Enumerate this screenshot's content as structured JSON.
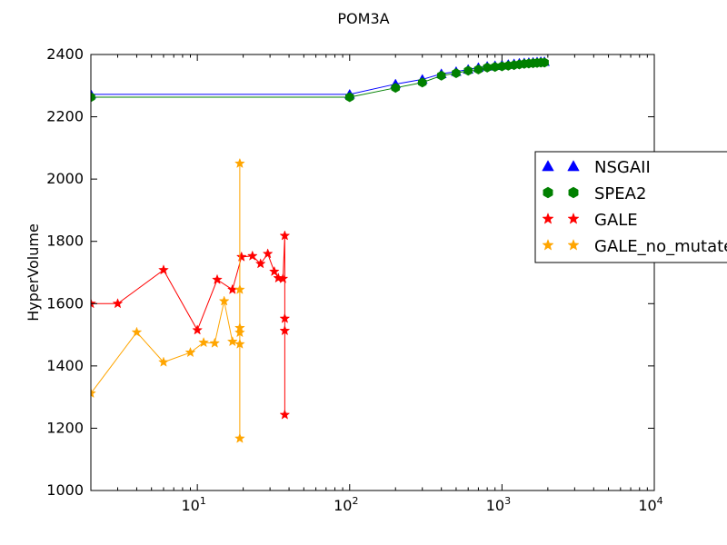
{
  "chart_data": {
    "type": "line",
    "title": "POM3A",
    "xlabel": "",
    "ylabel": "HyperVolume",
    "xscale": "log",
    "xlim": [
      2,
      10000
    ],
    "ylim": [
      1000,
      2400
    ],
    "yticks": [
      1000,
      1200,
      1400,
      1600,
      1800,
      2000,
      2200,
      2400
    ],
    "xticks": [
      {
        "value": 10,
        "base": "10",
        "exp": "1"
      },
      {
        "value": 100,
        "base": "10",
        "exp": "2"
      },
      {
        "value": 1000,
        "base": "10",
        "exp": "3"
      },
      {
        "value": 10000,
        "base": "10",
        "exp": "4"
      }
    ],
    "legend_position": "right",
    "series": [
      {
        "name": "NSGAII",
        "color": "#0000ff",
        "marker": "triangle",
        "x": [
          2,
          100,
          200,
          300,
          400,
          500,
          600,
          700,
          800,
          900,
          1000,
          1100,
          1200,
          1300,
          1400,
          1500,
          1600,
          1700,
          1800,
          1900
        ],
        "y": [
          2272,
          2272,
          2305,
          2320,
          2338,
          2345,
          2352,
          2358,
          2362,
          2364,
          2366,
          2368,
          2370,
          2372,
          2373,
          2374,
          2375,
          2376,
          2377,
          2377
        ]
      },
      {
        "name": "SPEA2",
        "color": "#008000",
        "marker": "hexagon",
        "x": [
          2,
          100,
          200,
          300,
          400,
          500,
          600,
          700,
          800,
          900,
          1000,
          1100,
          1200,
          1300,
          1400,
          1500,
          1600,
          1700,
          1800,
          1900
        ],
        "y": [
          2263,
          2263,
          2293,
          2310,
          2332,
          2340,
          2348,
          2352,
          2358,
          2360,
          2362,
          2364,
          2366,
          2368,
          2370,
          2371,
          2372,
          2373,
          2374,
          2374
        ]
      },
      {
        "name": "GALE",
        "color": "#ff0000",
        "marker": "star",
        "x": [
          2,
          3,
          6,
          10,
          13.5,
          17,
          19.5,
          23,
          26,
          29,
          32,
          34,
          36.5,
          37.5,
          37.5,
          37.5,
          37.5
        ],
        "y": [
          1600,
          1600,
          1708,
          1515,
          1677,
          1645,
          1750,
          1753,
          1728,
          1760,
          1703,
          1682,
          1680,
          1818,
          1552,
          1513,
          1243
        ]
      },
      {
        "name": "GALE_no_mutate",
        "color": "#ffa500",
        "marker": "star",
        "x": [
          2,
          4,
          6,
          9,
          11,
          13,
          15,
          17,
          19,
          19,
          19,
          19,
          19,
          19
        ],
        "y": [
          1312,
          1508,
          1412,
          1443,
          1475,
          1473,
          1608,
          1478,
          1470,
          2050,
          1645,
          1522,
          1507,
          1167
        ]
      }
    ]
  }
}
